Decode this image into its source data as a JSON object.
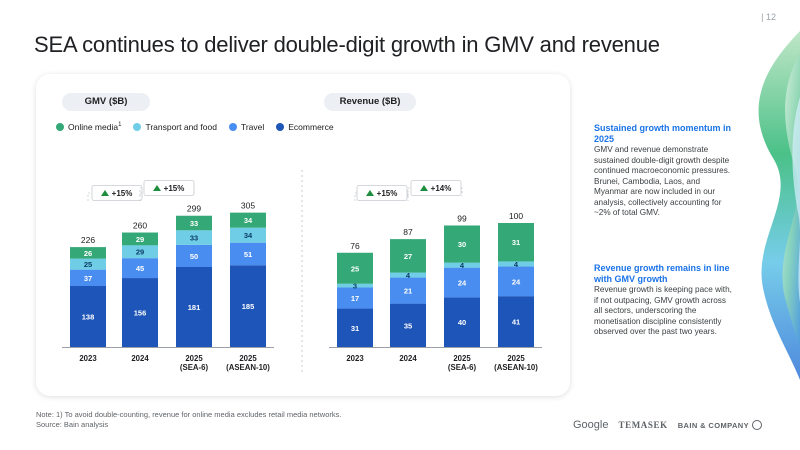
{
  "page_number": "| 12",
  "title": "SEA continues to deliver double-digit growth in GMV and revenue",
  "legend": [
    {
      "label": "Online media",
      "sup": "1",
      "color": "#34a877"
    },
    {
      "label": "Transport and food",
      "sup": "",
      "color": "#6fcde6"
    },
    {
      "label": "Travel",
      "sup": "",
      "color": "#4a8df0"
    },
    {
      "label": "Ecommerce",
      "sup": "",
      "color": "#1e55b8"
    }
  ],
  "chart_data": [
    {
      "type": "bar",
      "stacked": true,
      "title": "GMV ($B)",
      "categories": [
        "2023",
        "2024",
        "2025\n(SEA-6)",
        "2025\n(ASEAN-10)"
      ],
      "series": [
        {
          "name": "Ecommerce",
          "values": [
            138,
            156,
            181,
            185
          ]
        },
        {
          "name": "Travel",
          "values": [
            37,
            45,
            50,
            51
          ]
        },
        {
          "name": "Transport and food",
          "values": [
            25,
            29,
            33,
            34
          ]
        },
        {
          "name": "Online media",
          "values": [
            26,
            29,
            33,
            34
          ]
        }
      ],
      "totals": [
        226,
        260,
        299,
        305
      ],
      "growth_callouts": [
        "+15%",
        "+15%"
      ],
      "grid": false
    },
    {
      "type": "bar",
      "stacked": true,
      "title": "Revenue ($B)",
      "categories": [
        "2023",
        "2024",
        "2025\n(SEA-6)",
        "2025\n(ASEAN-10)"
      ],
      "series": [
        {
          "name": "Ecommerce",
          "values": [
            31,
            35,
            40,
            41
          ]
        },
        {
          "name": "Travel",
          "values": [
            17,
            21,
            24,
            24
          ]
        },
        {
          "name": "Transport and food",
          "values": [
            3,
            4,
            4,
            4
          ]
        },
        {
          "name": "Online media",
          "values": [
            25,
            27,
            30,
            31
          ]
        }
      ],
      "totals": [
        76,
        87,
        99,
        100
      ],
      "growth_callouts": [
        "+15%",
        "+14%"
      ],
      "grid": false
    }
  ],
  "sidebar": [
    {
      "heading": "Sustained growth momentum in 2025",
      "body": "GMV and revenue demonstrate sustained double-digit growth despite continued macroeconomic pressures. Brunei, Cambodia, Laos, and Myanmar are now included in our analysis, collectively accounting for ~2% of total GMV."
    },
    {
      "heading": "Revenue growth remains in line with GMV growth",
      "body": "Revenue growth is keeping pace with, if not outpacing, GMV growth across all sectors, underscoring the monetisation discipline consistently observed over the past two years."
    }
  ],
  "footnote": {
    "note": "Note: 1) To avoid double-counting, revenue for online media excludes retail media networks.",
    "source": "Source: Bain analysis"
  },
  "logos": {
    "google": "Google",
    "temasek": "TEMASEK",
    "bain": "BAIN & COMPANY"
  }
}
